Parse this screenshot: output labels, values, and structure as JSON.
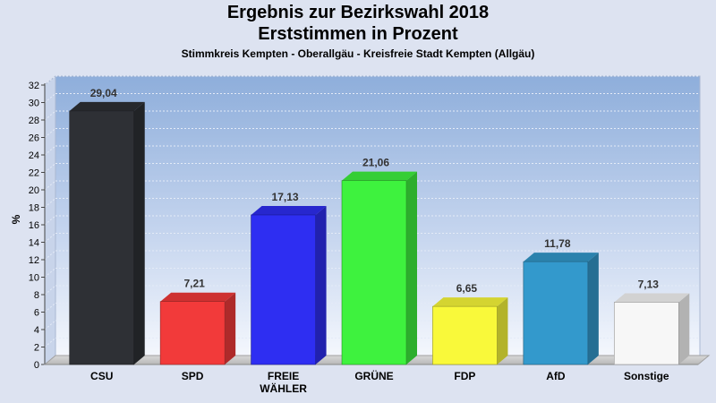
{
  "header": {
    "title_line1": "Ergebnis zur Bezirkswahl 2018",
    "title_line2": "Erststimmen in Prozent",
    "subtitle": "Stimmkreis Kempten - Oberallgäu - Kreisfreie Stadt Kempten (Allgäu)"
  },
  "chart_data": {
    "type": "bar",
    "title": "Ergebnis zur Bezirkswahl 2018 Erststimmen in Prozent",
    "subtitle": "Stimmkreis Kempten - Oberallgäu - Kreisfreie Stadt Kempten (Allgäu)",
    "xlabel": "",
    "ylabel": "%",
    "ylim": [
      0,
      32
    ],
    "yticks": [
      0,
      2,
      4,
      6,
      8,
      10,
      12,
      14,
      16,
      18,
      20,
      22,
      24,
      26,
      28,
      30,
      32
    ],
    "grid": true,
    "legend": "none",
    "categories": [
      {
        "lines": [
          "CSU"
        ]
      },
      {
        "lines": [
          "SPD"
        ]
      },
      {
        "lines": [
          "FREIE",
          "WÄHLER"
        ]
      },
      {
        "lines": [
          "GRÜNE"
        ]
      },
      {
        "lines": [
          "FDP"
        ]
      },
      {
        "lines": [
          "AfD"
        ]
      },
      {
        "lines": [
          "Sonstige"
        ]
      }
    ],
    "values": [
      29.04,
      7.21,
      17.13,
      21.06,
      6.65,
      11.78,
      7.13
    ],
    "value_labels": [
      "29,04",
      "7,21",
      "17,13",
      "21,06",
      "6,65",
      "11,78",
      "7,13"
    ],
    "colors": [
      "#2e3035",
      "#f23a3a",
      "#2e2ef2",
      "#3ef23e",
      "#f9f93a",
      "#3399cc",
      "#f7f7f7"
    ]
  }
}
